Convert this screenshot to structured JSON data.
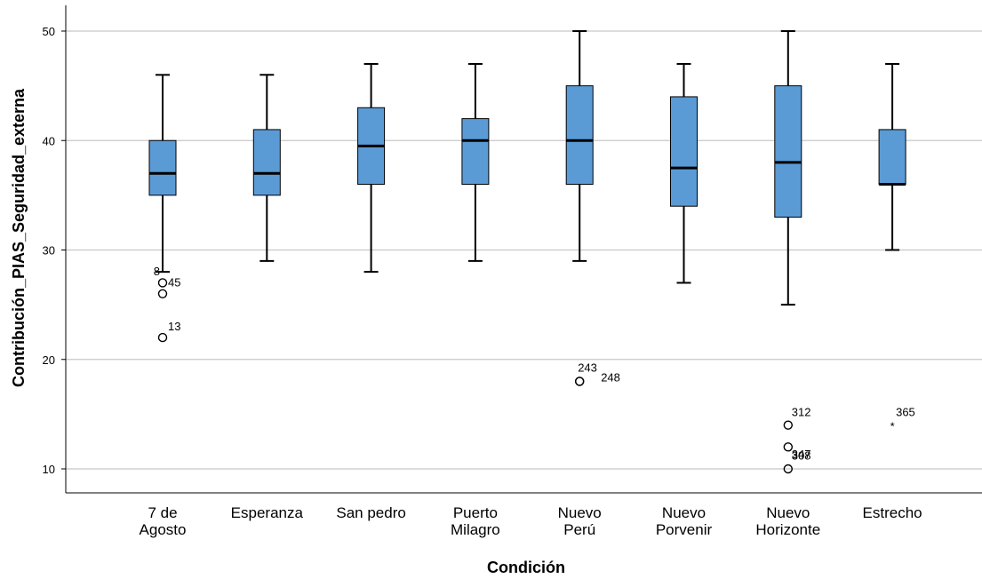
{
  "chart_data": {
    "type": "boxplot",
    "xlabel": "Condición",
    "ylabel": "Contribución_PIAS_Seguridad_externa",
    "ylim": [
      8,
      52
    ],
    "yticks": [
      10,
      20,
      30,
      40,
      50
    ],
    "grid": "horizontal",
    "box_color": "#5b9bd5",
    "categories": [
      {
        "label": [
          "7 de",
          "Agosto"
        ],
        "min": 28,
        "q1": 35,
        "median": 37,
        "q3": 40,
        "max": 46,
        "outliers": [
          {
            "id": "8",
            "value": 28,
            "marker": "none"
          },
          {
            "id": "45",
            "value": 27,
            "marker": "circle"
          },
          {
            "id": "",
            "value": 26,
            "marker": "circle"
          },
          {
            "id": "13",
            "value": 22,
            "marker": "circle"
          }
        ]
      },
      {
        "label": [
          "Esperanza"
        ],
        "min": 29,
        "q1": 35,
        "median": 37,
        "q3": 41,
        "max": 46,
        "outliers": []
      },
      {
        "label": [
          "San pedro"
        ],
        "min": 28,
        "q1": 36,
        "median": 39.5,
        "q3": 43,
        "max": 47,
        "outliers": []
      },
      {
        "label": [
          "Puerto",
          "Milagro"
        ],
        "min": 29,
        "q1": 36,
        "median": 40,
        "q3": 42,
        "max": 47,
        "outliers": []
      },
      {
        "label": [
          "Nuevo",
          "Perú"
        ],
        "min": 29,
        "q1": 36,
        "median": 40,
        "q3": 45,
        "max": 50,
        "outliers": [
          {
            "id": "243",
            "value": 18,
            "marker": "circle"
          },
          {
            "id": "248",
            "value": 18,
            "marker": "circle"
          }
        ]
      },
      {
        "label": [
          "Nuevo",
          "Porvenir"
        ],
        "min": 27,
        "q1": 34,
        "median": 37.5,
        "q3": 44,
        "max": 47,
        "outliers": []
      },
      {
        "label": [
          "Nuevo",
          "Horizonte"
        ],
        "min": 25,
        "q1": 33,
        "median": 38,
        "q3": 45,
        "max": 50,
        "outliers": [
          {
            "id": "312",
            "value": 14,
            "marker": "circle"
          },
          {
            "id": "308",
            "value": 12,
            "marker": "circle"
          },
          {
            "id": "347",
            "value": 10,
            "marker": "circle"
          }
        ]
      },
      {
        "label": [
          "Estrecho"
        ],
        "min": 30,
        "q1": 36,
        "median": 36,
        "q3": 41,
        "max": 47,
        "outliers": [
          {
            "id": "365",
            "value": 14,
            "marker": "star"
          }
        ]
      }
    ]
  }
}
